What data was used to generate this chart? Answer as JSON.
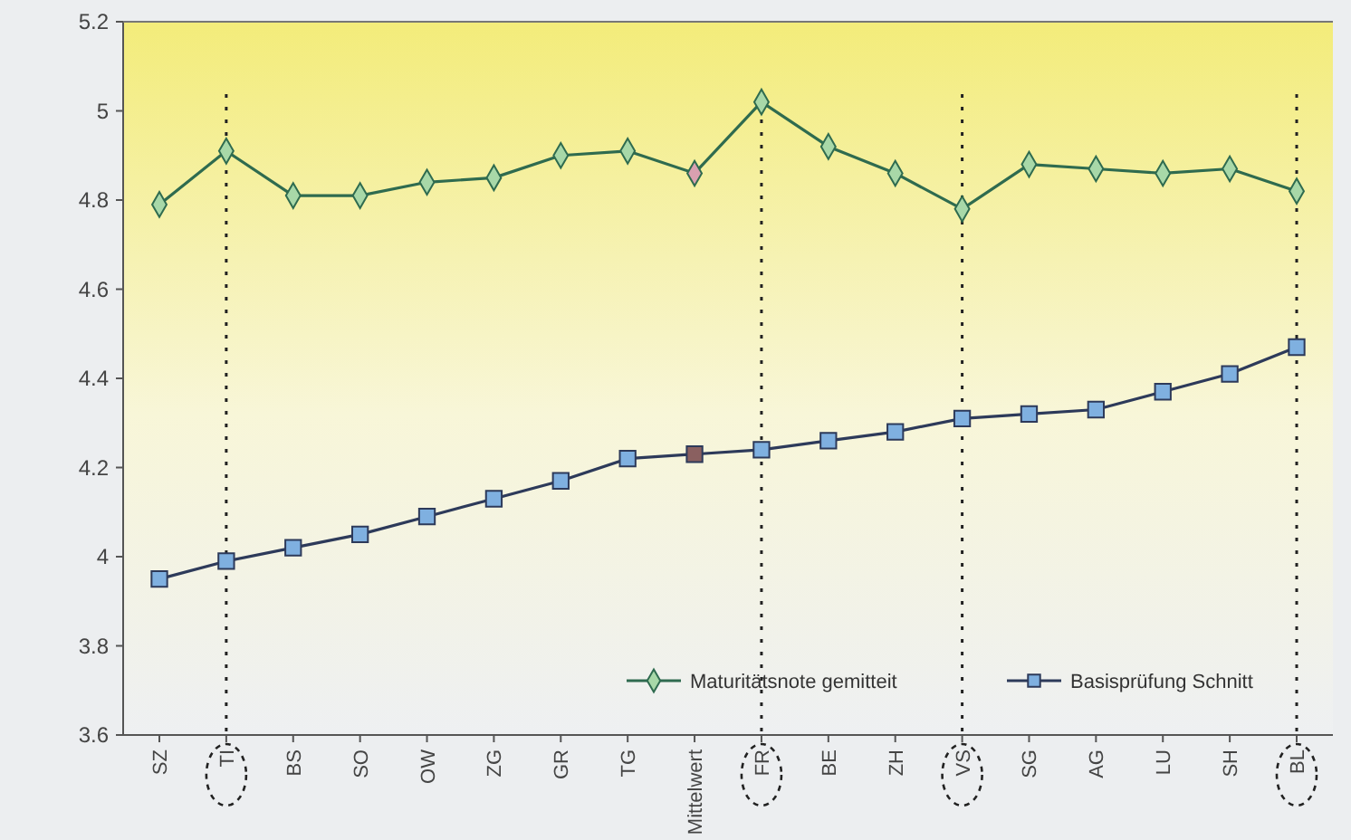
{
  "chart_data": {
    "type": "line",
    "categories": [
      "SZ",
      "TI",
      "BS",
      "SO",
      "OW",
      "ZG",
      "GR",
      "TG",
      "Mittelwert",
      "FR",
      "BE",
      "ZH",
      "VS",
      "SG",
      "AG",
      "LU",
      "SH",
      "BL"
    ],
    "series": [
      {
        "name": "Maturitätsnote gemitteit",
        "color": "#2f6b4f",
        "marker": "diamond",
        "values": [
          4.79,
          4.91,
          4.81,
          4.81,
          4.84,
          4.85,
          4.9,
          4.91,
          4.86,
          5.02,
          4.92,
          4.86,
          4.78,
          4.88,
          4.87,
          4.86,
          4.87,
          4.82
        ],
        "colors": [
          "#a8d8a8",
          "#a8d8a8",
          "#a8d8a8",
          "#a8d8a8",
          "#a8d8a8",
          "#a8d8a8",
          "#a8d8a8",
          "#a8d8a8",
          "#d9a0b0",
          "#a8d8a8",
          "#a8d8a8",
          "#a8d8a8",
          "#a8d8a8",
          "#a8d8a8",
          "#a8d8a8",
          "#a8d8a8",
          "#a8d8a8",
          "#a8d8a8"
        ]
      },
      {
        "name": "Basisprüfung Schnitt",
        "color": "#2d3a5a",
        "marker": "square",
        "values": [
          3.95,
          3.99,
          4.02,
          4.05,
          4.09,
          4.13,
          4.17,
          4.22,
          4.23,
          4.24,
          4.26,
          4.28,
          4.31,
          4.32,
          4.33,
          4.37,
          4.41,
          4.47
        ],
        "colors": [
          "#7fb0e0",
          "#7fb0e0",
          "#7fb0e0",
          "#7fb0e0",
          "#7fb0e0",
          "#7fb0e0",
          "#7fb0e0",
          "#7fb0e0",
          "#8a6060",
          "#7fb0e0",
          "#7fb0e0",
          "#7fb0e0",
          "#7fb0e0",
          "#7fb0e0",
          "#7fb0e0",
          "#7fb0e0",
          "#7fb0e0",
          "#7fb0e0"
        ]
      }
    ],
    "ylim": [
      3.6,
      5.2
    ],
    "yticks": [
      3.6,
      3.8,
      4,
      4.2,
      4.4,
      4.6,
      4.8,
      5,
      5.2
    ],
    "legend": "bottom right",
    "grid": false,
    "ref_lines": [
      {
        "axis": "x",
        "value": "TI",
        "line_style": "dotted",
        "color": "#222222"
      },
      {
        "axis": "x",
        "value": "FR",
        "line_style": "dotted",
        "color": "#222222"
      },
      {
        "axis": "x",
        "value": "VS",
        "line_style": "dotted",
        "color": "#222222"
      },
      {
        "axis": "x",
        "value": "BL",
        "line_style": "dotted",
        "color": "#222222"
      }
    ]
  }
}
